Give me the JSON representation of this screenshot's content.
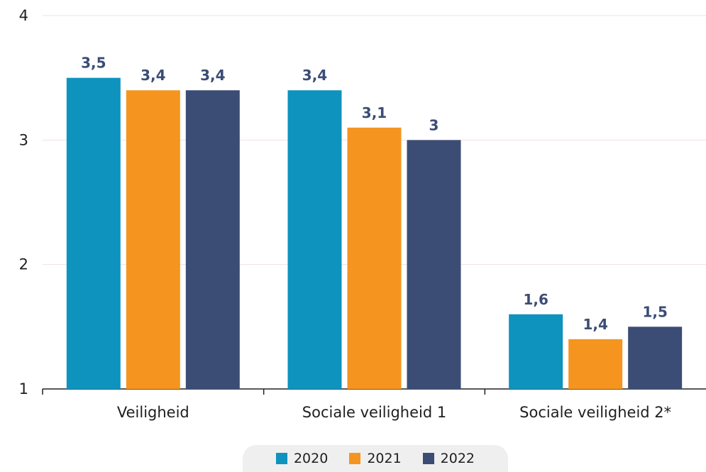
{
  "chart_data": {
    "type": "bar",
    "categories": [
      "Veiligheid",
      "Sociale veiligheid 1",
      "Sociale veiligheid 2*"
    ],
    "series": [
      {
        "name": "2020",
        "color": "#0e93bf",
        "values": [
          3.5,
          3.4,
          1.6
        ],
        "labels": [
          "3,5",
          "3,4",
          "1,6"
        ]
      },
      {
        "name": "2021",
        "color": "#f5951f",
        "values": [
          3.4,
          3.1,
          1.4
        ],
        "labels": [
          "3,4",
          "3,1",
          "1,4"
        ]
      },
      {
        "name": "2022",
        "color": "#3b4d75",
        "values": [
          3.4,
          3.0,
          1.5
        ],
        "labels": [
          "3,4",
          "3",
          "1,5"
        ]
      }
    ],
    "yticks": [
      "1",
      "2",
      "3",
      "4"
    ],
    "ylim": [
      1,
      4
    ],
    "grid": true,
    "legend_position": "bottom",
    "colors": {
      "grid": "#f3dede",
      "axis": "#222222",
      "value_label": "#3b4d75"
    }
  }
}
